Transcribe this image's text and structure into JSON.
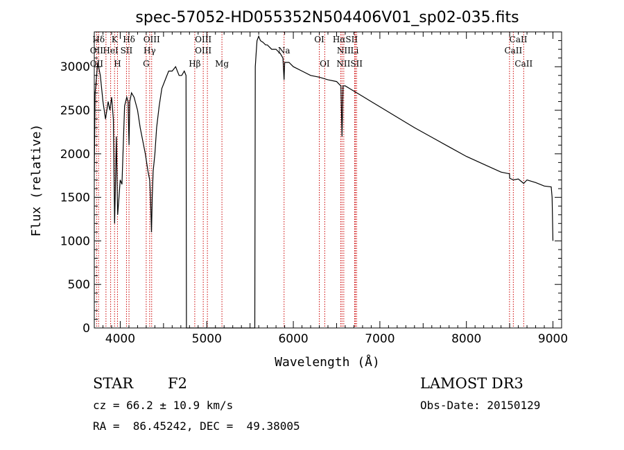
{
  "chart_data": {
    "type": "line",
    "title": "spec-57052-HD055352N504406V01_sp02-035.fits",
    "xlabel": "Wavelength (Å)",
    "ylabel": "Flux (relative)",
    "xlim": [
      3700,
      9100
    ],
    "ylim": [
      0,
      3400
    ],
    "x_ticks": [
      4000,
      5000,
      6000,
      7000,
      8000,
      9000
    ],
    "y_ticks": [
      0,
      500,
      1000,
      1500,
      2000,
      2500,
      3000
    ],
    "grid": false,
    "series": [
      {
        "x": [
          3700,
          3710,
          3740,
          3770,
          3800,
          3830,
          3860,
          3880,
          3900,
          3920,
          3935,
          3945,
          3955,
          3970,
          3985,
          4000,
          4020,
          4050,
          4075,
          4090,
          4101,
          4110,
          4130,
          4160,
          4200,
          4230,
          4260,
          4290,
          4320,
          4340,
          4350,
          4355,
          4361,
          4370,
          4380,
          4400,
          4420,
          4450,
          4480,
          4520,
          4560,
          4600,
          4640,
          4680,
          4710,
          4740,
          4760,
          4762,
          4765,
          4775,
          5555,
          5560,
          5570,
          5580,
          5600,
          5620,
          5650,
          5680,
          5700,
          5750,
          5800,
          5850,
          5880,
          5893,
          5900,
          5950,
          6000,
          6100,
          6200,
          6300,
          6400,
          6500,
          6530,
          6550,
          6563,
          6575,
          6600,
          6700,
          6800,
          6900,
          7000,
          7200,
          7400,
          7600,
          7800,
          8000,
          8200,
          8400,
          8498,
          8500,
          8542,
          8600,
          8662,
          8700,
          8800,
          8900,
          8980,
          8990,
          9000
        ],
        "y": [
          1800,
          2700,
          3050,
          2900,
          2600,
          2400,
          2600,
          2500,
          2650,
          2400,
          1200,
          1700,
          2200,
          1300,
          1500,
          1700,
          1650,
          2550,
          2650,
          2600,
          2100,
          2600,
          2700,
          2650,
          2500,
          2300,
          2150,
          2000,
          1800,
          1700,
          1500,
          1300,
          1100,
          1500,
          1800,
          2000,
          2300,
          2550,
          2750,
          2850,
          2950,
          2950,
          3000,
          2900,
          2900,
          2950,
          2900,
          1500,
          0,
          0,
          0,
          3000,
          3150,
          3300,
          3350,
          3300,
          3280,
          3250,
          3250,
          3200,
          3200,
          3150,
          3100,
          2850,
          3050,
          3050,
          3000,
          2950,
          2900,
          2880,
          2850,
          2830,
          2800,
          2780,
          2200,
          2780,
          2780,
          2720,
          2660,
          2600,
          2540,
          2420,
          2300,
          2190,
          2080,
          1970,
          1880,
          1790,
          1770,
          1720,
          1700,
          1710,
          1660,
          1700,
          1670,
          1630,
          1620,
          1500,
          1000
        ]
      }
    ],
    "spectral_lines": [
      {
        "label": "Hδ",
        "wavelength": 3750,
        "row": 1
      },
      {
        "label": "K",
        "wavelength": 3934,
        "row": 1
      },
      {
        "label": "Hδ",
        "wavelength": 4101,
        "row": 1
      },
      {
        "label": "OIII",
        "wavelength": 4363,
        "row": 1
      },
      {
        "label": "OIII",
        "wavelength": 4959,
        "row": 1
      },
      {
        "label": "OI",
        "wavelength": 6300,
        "row": 1
      },
      {
        "label": "HαSII",
        "wavelength": 6600,
        "row": 1
      },
      {
        "label": "CaII",
        "wavelength": 8600,
        "row": 1
      },
      {
        "label": "OII",
        "wavelength": 3727,
        "row": 2
      },
      {
        "label": "HeI",
        "wavelength": 3889,
        "row": 2
      },
      {
        "label": "SII",
        "wavelength": 4072,
        "row": 2
      },
      {
        "label": "Hγ",
        "wavelength": 4340,
        "row": 2
      },
      {
        "label": "OIII",
        "wavelength": 4959,
        "row": 2
      },
      {
        "label": "Na",
        "wavelength": 5893,
        "row": 2
      },
      {
        "label": "NII",
        "wavelength": 6583,
        "row": 2
      },
      {
        "label": "Li",
        "wavelength": 6708,
        "row": 2
      },
      {
        "label": "CaII",
        "wavelength": 8542,
        "row": 2
      },
      {
        "label": "OII",
        "wavelength": 3727,
        "row": 3
      },
      {
        "label": "H",
        "wavelength": 3968,
        "row": 3
      },
      {
        "label": "G",
        "wavelength": 4300,
        "row": 3
      },
      {
        "label": "Hβ",
        "wavelength": 4861,
        "row": 3
      },
      {
        "label": "Mg",
        "wavelength": 5175,
        "row": 3
      },
      {
        "label": "OI",
        "wavelength": 6363,
        "row": 3
      },
      {
        "label": "NIISII",
        "wavelength": 6650,
        "row": 3
      },
      {
        "label": "CaII",
        "wavelength": 8662,
        "row": 3
      }
    ],
    "line_markers": [
      3727,
      3750,
      3835,
      3889,
      3934,
      3968,
      4072,
      4101,
      4300,
      4340,
      4363,
      4861,
      4959,
      5007,
      5175,
      5893,
      6300,
      6363,
      6548,
      6563,
      6583,
      6708,
      6717,
      6731,
      8498,
      8542,
      8662
    ],
    "colors": {
      "spectrum": "#000000",
      "markers": "#cc0000"
    }
  },
  "info": {
    "object_class": "STAR",
    "subclass": "F2",
    "survey": "LAMOST DR3",
    "cz": "cz = 66.2 ± 10.9 km/s",
    "obs_date": "Obs-Date: 20150129",
    "coords": "RA =  86.45242, DEC =  49.38005"
  }
}
